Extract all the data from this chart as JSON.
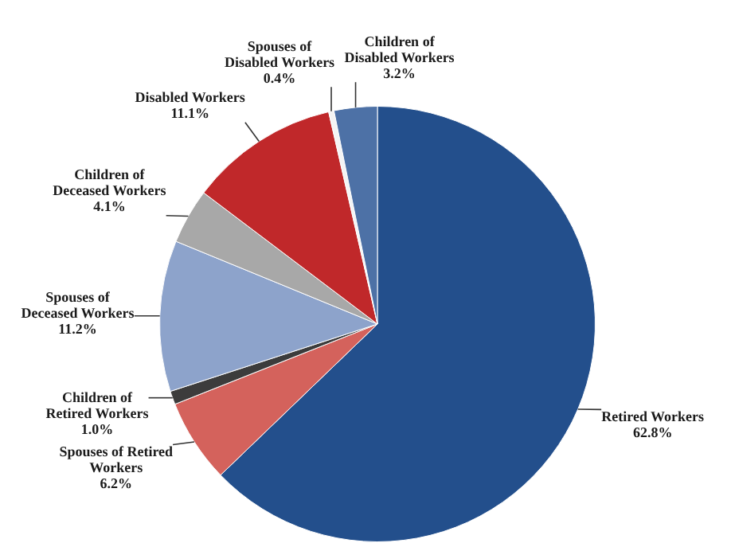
{
  "chart_data": {
    "type": "pie",
    "categories": [
      "Retired Workers",
      "Spouses of Retired Workers",
      "Children of Retired Workers",
      "Spouses of Deceased Workers",
      "Children of Deceased Workers",
      "Disabled Workers",
      "Spouses of Disabled Workers",
      "Children of Disabled Workers"
    ],
    "values": [
      62.8,
      6.2,
      1.0,
      11.2,
      4.1,
      11.1,
      0.4,
      3.2
    ],
    "value_labels": [
      "62.8%",
      "6.2%",
      "1.0%",
      "11.2%",
      "4.1%",
      "11.1%",
      "0.4%",
      "3.2%"
    ],
    "colors": [
      "#234f8c",
      "#d4625c",
      "#3c3c3c",
      "#8da3cb",
      "#a8a8a8",
      "#c0282a",
      "#f4f4f4",
      "#4d71a6"
    ],
    "legend": false
  }
}
